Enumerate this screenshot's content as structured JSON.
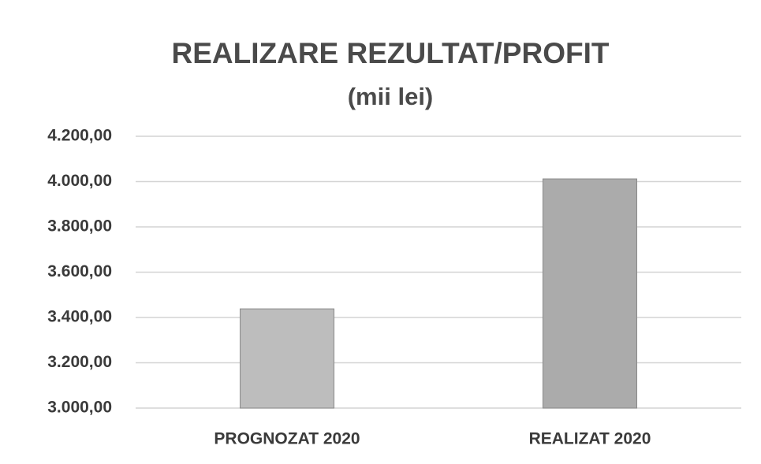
{
  "chart_data": {
    "type": "bar",
    "title": "REALIZARE REZULTAT/PROFIT",
    "subtitle": "(mii lei)",
    "categories": [
      "PROGNOZAT 2020",
      "REALIZAT 2020"
    ],
    "values": [
      3438,
      4012
    ],
    "colors": [
      "#bdbdbd",
      "#ababab"
    ],
    "ylim": [
      3000,
      4200
    ],
    "yticks": [
      {
        "value": 3000,
        "label": "3.000,00"
      },
      {
        "value": 3200,
        "label": "3.200,00"
      },
      {
        "value": 3400,
        "label": "3.400,00"
      },
      {
        "value": 3600,
        "label": "3.600,00"
      },
      {
        "value": 3800,
        "label": "3.800,00"
      },
      {
        "value": 4000,
        "label": "4.000,00"
      },
      {
        "value": 4200,
        "label": "4.200,00"
      }
    ],
    "grid": true
  }
}
